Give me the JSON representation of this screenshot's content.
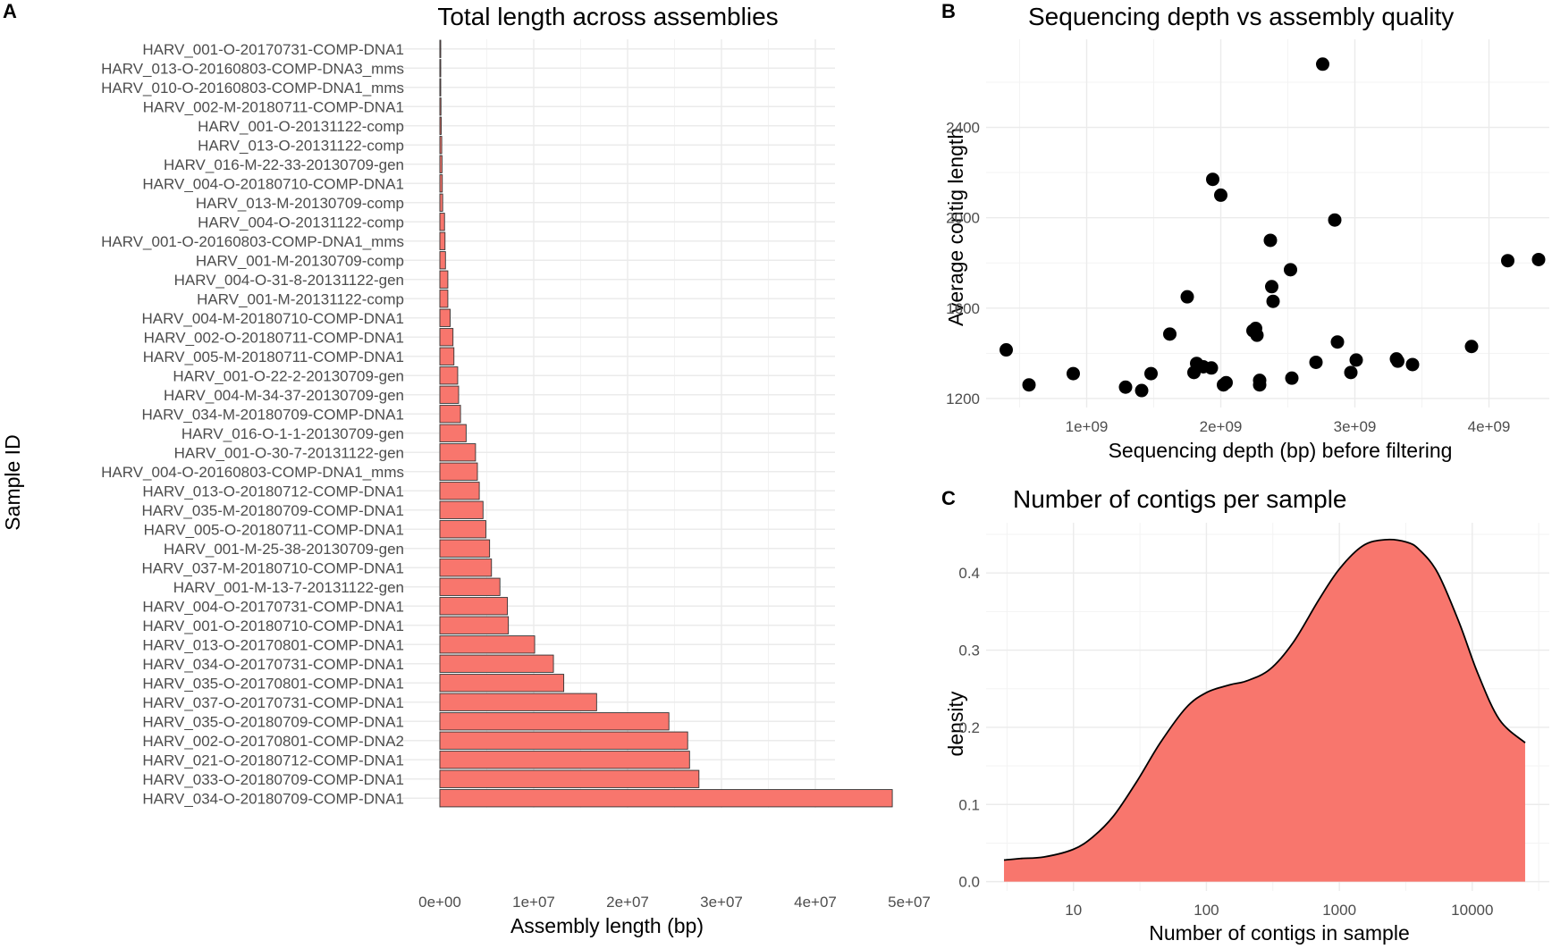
{
  "chart_data": [
    {
      "panel_label": "A",
      "type": "bar",
      "orientation": "horizontal",
      "title": "Total length across assemblies",
      "xlabel": "Assembly length (bp)",
      "ylabel": "Sample ID",
      "xlim": [
        0,
        50000000
      ],
      "xticks": [
        0,
        10000000,
        20000000,
        30000000,
        40000000,
        50000000
      ],
      "xtick_labels": [
        "0e+00",
        "1e+07",
        "2e+07",
        "3e+07",
        "4e+07",
        "5e+07"
      ],
      "bar_color": "#f8766d",
      "grid": true,
      "categories": [
        "HARV_001-O-20170731-COMP-DNA1",
        "HARV_013-O-20160803-COMP-DNA3_mms",
        "HARV_010-O-20160803-COMP-DNA1_mms",
        "HARV_002-M-20180711-COMP-DNA1",
        "HARV_001-O-20131122-comp",
        "HARV_013-O-20131122-comp",
        "HARV_016-M-22-33-20130709-gen",
        "HARV_004-O-20180710-COMP-DNA1",
        "HARV_013-M-20130709-comp",
        "HARV_004-O-20131122-comp",
        "HARV_001-O-20160803-COMP-DNA1_mms",
        "HARV_001-M-20130709-comp",
        "HARV_004-O-31-8-20131122-gen",
        "HARV_001-M-20131122-comp",
        "HARV_004-M-20180710-COMP-DNA1",
        "HARV_002-O-20180711-COMP-DNA1",
        "HARV_005-M-20180711-COMP-DNA1",
        "HARV_001-O-22-2-20130709-gen",
        "HARV_004-M-34-37-20130709-gen",
        "HARV_034-M-20180709-COMP-DNA1",
        "HARV_016-O-1-1-20130709-gen",
        "HARV_001-O-30-7-20131122-gen",
        "HARV_004-O-20160803-COMP-DNA1_mms",
        "HARV_013-O-20180712-COMP-DNA1",
        "HARV_035-M-20180709-COMP-DNA1",
        "HARV_005-O-20180711-COMP-DNA1",
        "HARV_001-M-25-38-20130709-gen",
        "HARV_037-M-20180710-COMP-DNA1",
        "HARV_001-M-13-7-20131122-gen",
        "HARV_004-O-20170731-COMP-DNA1",
        "HARV_001-O-20180710-COMP-DNA1",
        "HARV_013-O-20170801-COMP-DNA1",
        "HARV_034-O-20170731-COMP-DNA1",
        "HARV_035-O-20170801-COMP-DNA1",
        "HARV_037-O-20170731-COMP-DNA1",
        "HARV_035-O-20180709-COMP-DNA1",
        "HARV_002-O-20170801-COMP-DNA2",
        "HARV_021-O-20180712-COMP-DNA1",
        "HARV_033-O-20180709-COMP-DNA1",
        "HARV_034-O-20180709-COMP-DNA1"
      ],
      "values": [
        50000,
        60000,
        80000,
        120000,
        150000,
        200000,
        230000,
        260000,
        300000,
        500000,
        550000,
        600000,
        850000,
        850000,
        1100000,
        1400000,
        1500000,
        1900000,
        2000000,
        2200000,
        2800000,
        3800000,
        4000000,
        4200000,
        4600000,
        4900000,
        5300000,
        5500000,
        6400000,
        7200000,
        7300000,
        10100000,
        12100000,
        13200000,
        16700000,
        24400000,
        26400000,
        26600000,
        27600000,
        48200000
      ]
    },
    {
      "panel_label": "B",
      "type": "scatter",
      "title": "Sequencing depth vs assembly quality",
      "xlabel": "Sequencing depth (bp) before filtering",
      "ylabel": "Average contig length",
      "xlim": [
        250000000,
        4450000000
      ],
      "ylim": [
        1160,
        2790
      ],
      "xticks": [
        1000000000,
        2000000000,
        3000000000,
        4000000000
      ],
      "xtick_labels": [
        "1e+09",
        "2e+09",
        "3e+09",
        "4e+09"
      ],
      "yticks": [
        1200,
        1600,
        2000,
        2400
      ],
      "ytick_labels": [
        "1200",
        "1600",
        "2000",
        "2400"
      ],
      "point_color": "#000000",
      "grid": true,
      "points": [
        {
          "x": 400000000,
          "y": 1415
        },
        {
          "x": 570000000,
          "y": 1260
        },
        {
          "x": 900000000,
          "y": 1310
        },
        {
          "x": 1290000000,
          "y": 1250
        },
        {
          "x": 1410000000,
          "y": 1235
        },
        {
          "x": 1480000000,
          "y": 1310
        },
        {
          "x": 1620000000,
          "y": 1485
        },
        {
          "x": 1750000000,
          "y": 1650
        },
        {
          "x": 1800000000,
          "y": 1315
        },
        {
          "x": 1820000000,
          "y": 1355
        },
        {
          "x": 1870000000,
          "y": 1340
        },
        {
          "x": 1930000000,
          "y": 1335
        },
        {
          "x": 1940000000,
          "y": 2170
        },
        {
          "x": 2000000000,
          "y": 2100
        },
        {
          "x": 2020000000,
          "y": 1260
        },
        {
          "x": 2040000000,
          "y": 1270
        },
        {
          "x": 2240000000,
          "y": 1500
        },
        {
          "x": 2260000000,
          "y": 1510
        },
        {
          "x": 2270000000,
          "y": 1480
        },
        {
          "x": 2290000000,
          "y": 1260
        },
        {
          "x": 2290000000,
          "y": 1280
        },
        {
          "x": 2370000000,
          "y": 1900
        },
        {
          "x": 2380000000,
          "y": 1695
        },
        {
          "x": 2390000000,
          "y": 1630
        },
        {
          "x": 2520000000,
          "y": 1770
        },
        {
          "x": 2530000000,
          "y": 1290
        },
        {
          "x": 2710000000,
          "y": 1360
        },
        {
          "x": 2760000000,
          "y": 2680
        },
        {
          "x": 2850000000,
          "y": 1990
        },
        {
          "x": 2870000000,
          "y": 1450
        },
        {
          "x": 2970000000,
          "y": 1315
        },
        {
          "x": 3010000000,
          "y": 1370
        },
        {
          "x": 3310000000,
          "y": 1375
        },
        {
          "x": 3320000000,
          "y": 1365
        },
        {
          "x": 3430000000,
          "y": 1350
        },
        {
          "x": 3870000000,
          "y": 1430
        },
        {
          "x": 4140000000,
          "y": 1810
        },
        {
          "x": 4370000000,
          "y": 1815
        }
      ]
    },
    {
      "panel_label": "C",
      "type": "area",
      "title": "Number of contigs per sample",
      "xlabel": "Number of contigs in sample",
      "ylabel": "density",
      "xscale": "log10",
      "xlim": [
        2.2,
        38000
      ],
      "ylim": [
        -0.012,
        0.465
      ],
      "xticks": [
        10,
        100,
        1000,
        10000
      ],
      "xtick_labels": [
        "10",
        "100",
        "1000",
        "10000"
      ],
      "yticks": [
        0,
        0.1,
        0.2,
        0.3,
        0.4
      ],
      "ytick_labels": [
        "0.0",
        "0.1",
        "0.2",
        "0.3",
        "0.4"
      ],
      "fill_color": "#f8766d",
      "grid": true,
      "x": [
        3,
        4,
        6,
        10,
        14,
        20,
        30,
        45,
        70,
        100,
        150,
        200,
        300,
        450,
        700,
        1000,
        1500,
        2200,
        3200,
        4000,
        5500,
        8000,
        11000,
        16000,
        25000
      ],
      "y": [
        0.028,
        0.03,
        0.032,
        0.042,
        0.058,
        0.085,
        0.13,
        0.18,
        0.225,
        0.245,
        0.255,
        0.26,
        0.275,
        0.31,
        0.365,
        0.405,
        0.435,
        0.443,
        0.44,
        0.43,
        0.4,
        0.335,
        0.27,
        0.21,
        0.18
      ]
    }
  ]
}
